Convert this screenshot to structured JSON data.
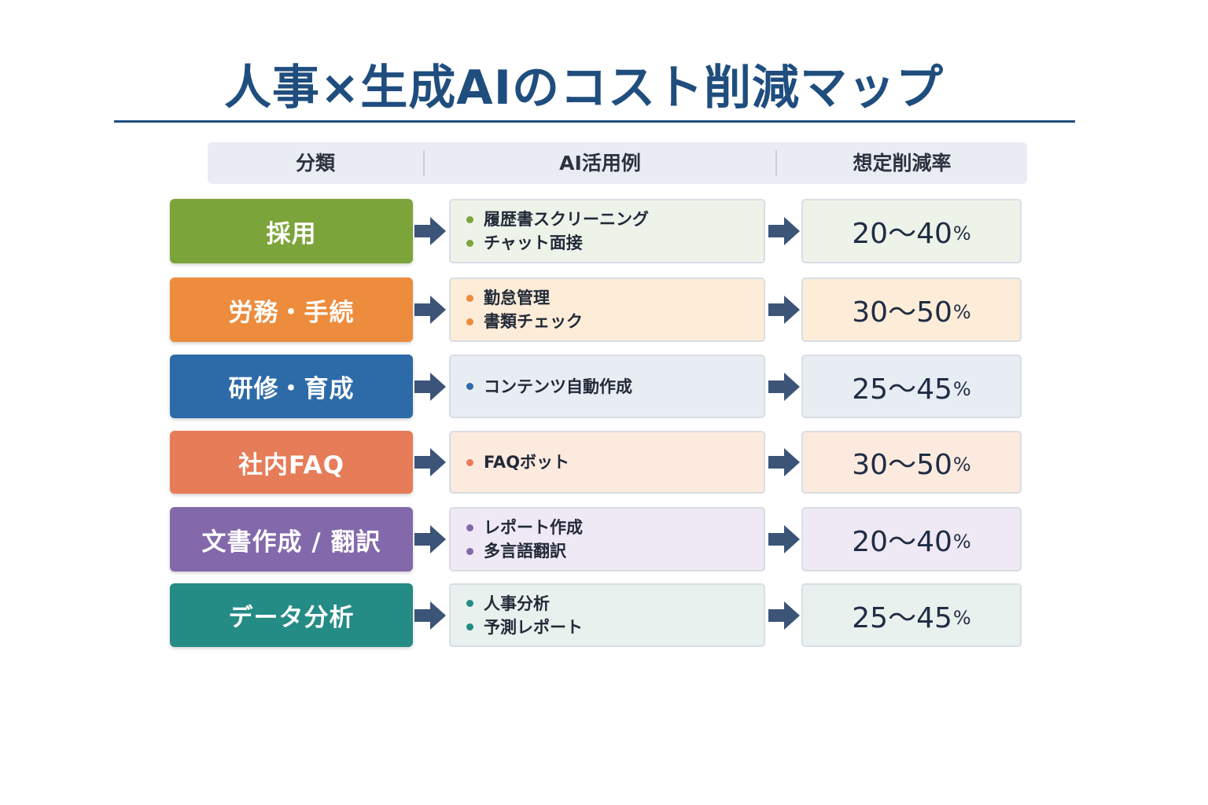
{
  "title": "人事×生成AIのコスト削減マップ",
  "header": {
    "category": "分類",
    "examples": "AI活用例",
    "rate": "想定削減率"
  },
  "colors": {
    "title": "#1f4e7e",
    "arrow": "#3b5478"
  },
  "rows": [
    {
      "category": "採用",
      "color": "#7ba43a",
      "tint": "#eef3ea",
      "examples": [
        "履歴書スクリーニング",
        "チャット面接"
      ],
      "range": "20〜40",
      "unit": "%"
    },
    {
      "category": "労務・手続",
      "color": "#ec8c3c",
      "tint": "#fdecd8",
      "examples": [
        "勤怠管理",
        "書類チェック"
      ],
      "range": "30〜50",
      "unit": "%"
    },
    {
      "category": "研修・育成",
      "color": "#2d6aa8",
      "tint": "#e8ecf3",
      "examples": [
        "コンテンツ自動作成"
      ],
      "range": "25〜45",
      "unit": "%"
    },
    {
      "category": "社内FAQ",
      "color": "#e67c58",
      "tint": "#fdeadf",
      "examples": [
        "FAQボット"
      ],
      "range": "30〜50",
      "unit": "%"
    },
    {
      "category": "文書作成 / 翻訳",
      "color": "#8369ab",
      "tint": "#efe8f5",
      "examples": [
        "レポート作成",
        "多言語翻訳"
      ],
      "range": "20〜40",
      "unit": "%"
    },
    {
      "category": "データ分析",
      "color": "#248b85",
      "tint": "#e9f1ee",
      "examples": [
        "人事分析",
        "予測レポート"
      ],
      "range": "25〜45",
      "unit": "%"
    }
  ]
}
